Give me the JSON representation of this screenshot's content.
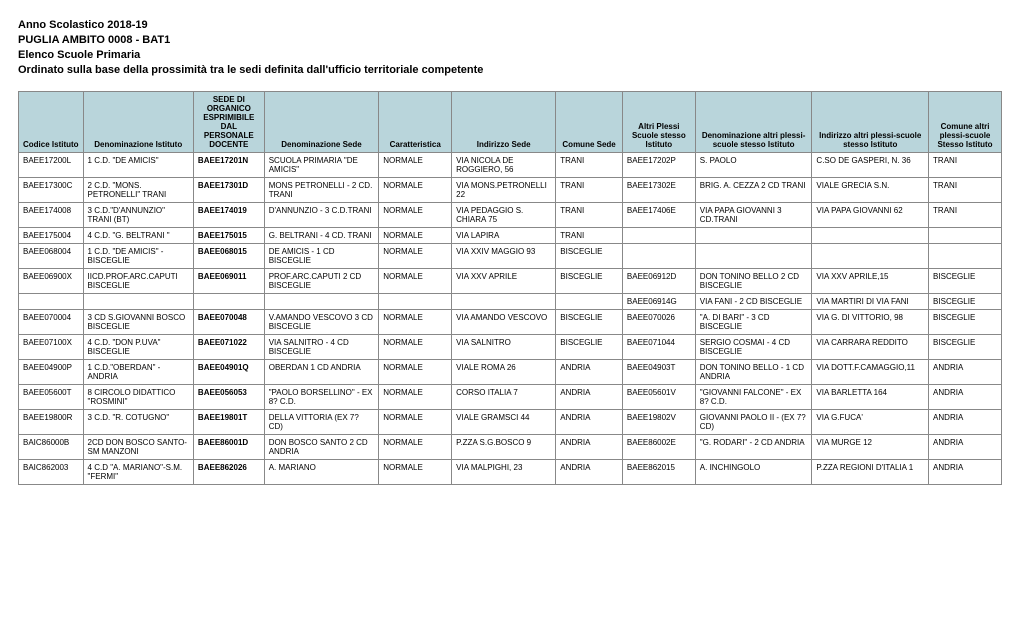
{
  "heading": {
    "line1": "Anno Scolastico 2018-19",
    "line2": "PUGLIA AMBITO 0008 - BAT1",
    "line3": "Elenco Scuole Primaria",
    "line4": "Ordinato sulla base della prossimità tra le sedi definita dall'ufficio territoriale competente"
  },
  "table": {
    "header_bg": "#b9d5db",
    "border_color": "#888888",
    "columns": [
      "Codice Istituto",
      "Denominazione Istituto",
      "SEDE DI ORGANICO ESPRIMIBILE DAL PERSONALE DOCENTE",
      "Denominazione Sede",
      "Caratteristica",
      "Indirizzo Sede",
      "Comune Sede",
      "Altri Plessi Scuole stesso Istituto",
      "Denominazione altri plessi-scuole stesso Istituto",
      "Indirizzo altri plessi-scuole stesso Istituto",
      "Comune altri plessi-scuole Stesso Istituto"
    ],
    "rows": [
      [
        "BAEE17200L",
        "1 C.D. \"DE AMICIS\"",
        "BAEE17201N",
        "SCUOLA PRIMARIA \"DE AMICIS\"",
        "NORMALE",
        "VIA NICOLA DE ROGGIERO, 56",
        "TRANI",
        "BAEE17202P",
        "S. PAOLO",
        "C.SO DE GASPERI, N. 36",
        "TRANI"
      ],
      [
        "BAEE17300C",
        "2 C.D. \"MONS. PETRONELLI\" TRANI",
        "BAEE17301D",
        "MONS PETRONELLI - 2 CD. TRANI",
        "NORMALE",
        "VIA MONS.PETRONELLI 22",
        "TRANI",
        "BAEE17302E",
        "BRIG. A. CEZZA 2 CD TRANI",
        "VIALE GRECIA S.N.",
        "TRANI"
      ],
      [
        "BAEE174008",
        "3 C.D.\"D'ANNUNZIO\" TRANI (BT)",
        "BAEE174019",
        "D'ANNUNZIO - 3 C.D.TRANI",
        "NORMALE",
        "VIA PEDAGGIO S. CHIARA  75",
        "TRANI",
        "BAEE17406E",
        "VIA PAPA GIOVANNI  3 CD.TRANI",
        "VIA PAPA GIOVANNI 62",
        "TRANI"
      ],
      [
        "BAEE175004",
        "4 C.D. \"G. BELTRANI \"",
        "BAEE175015",
        "G. BELTRANI  - 4 CD. TRANI",
        "NORMALE",
        "VIA LAPIRA",
        "TRANI",
        "",
        "",
        "",
        ""
      ],
      [
        "BAEE068004",
        "1 C.D. \"DE AMICIS\" - BISCEGLIE",
        "BAEE068015",
        "DE AMICIS - 1 CD BISCEGLIE",
        "NORMALE",
        "VIA XXIV MAGGIO 93",
        "BISCEGLIE",
        "",
        "",
        "",
        ""
      ],
      [
        "BAEE06900X",
        "IICD.PROF.ARC.CAPUTI BISCEGLIE",
        "BAEE069011",
        "PROF.ARC.CAPUTI 2 CD BISCEGLIE",
        "NORMALE",
        "VIA XXV APRILE",
        "BISCEGLIE",
        "BAEE06912D",
        "DON TONINO BELLO 2 CD BISCEGLIE",
        "VIA XXV APRILE,15",
        "BISCEGLIE"
      ],
      [
        "",
        "",
        "",
        "",
        "",
        "",
        "",
        "BAEE06914G",
        "VIA FANI - 2 CD BISCEGLIE",
        "VIA MARTIRI DI VIA FANI",
        "BISCEGLIE"
      ],
      [
        "BAEE070004",
        "3 CD S.GIOVANNI BOSCO BISCEGLIE",
        "BAEE070048",
        "V.AMANDO VESCOVO 3 CD BISCEGLIE",
        "NORMALE",
        "VIA AMANDO VESCOVO",
        "BISCEGLIE",
        "BAEE070026",
        "\"A. DI BARI\" - 3 CD BISCEGLIE",
        "VIA G. DI VITTORIO, 98",
        "BISCEGLIE"
      ],
      [
        "BAEE07100X",
        "4 C.D. \"DON P.UVA\" BISCEGLIE",
        "BAEE071022",
        "VIA SALNITRO - 4 CD BISCEGLIE",
        "NORMALE",
        "VIA SALNITRO",
        "BISCEGLIE",
        "BAEE071044",
        "SERGIO COSMAI - 4 CD BISCEGLIE",
        "VIA CARRARA REDDITO",
        "BISCEGLIE"
      ],
      [
        "BAEE04900P",
        "1 C.D.\"OBERDAN\" - ANDRIA",
        "BAEE04901Q",
        "OBERDAN  1 CD ANDRIA",
        "NORMALE",
        "VIALE ROMA 26",
        "ANDRIA",
        "BAEE04903T",
        "DON TONINO BELLO - 1 CD ANDRIA",
        "VIA DOTT.F.CAMAGGIO,11",
        "ANDRIA"
      ],
      [
        "BAEE05600T",
        "8 CIRCOLO DIDATTICO \"ROSMINI\"",
        "BAEE056053",
        "\"PAOLO BORSELLINO\" - EX 8? C.D.",
        "NORMALE",
        "CORSO ITALIA 7",
        "ANDRIA",
        "BAEE05601V",
        "\"GIOVANNI FALCONE\" - EX 8? C.D.",
        "VIA BARLETTA 164",
        "ANDRIA"
      ],
      [
        "BAEE19800R",
        "3 C.D. \"R. COTUGNO\"",
        "BAEE19801T",
        "DELLA VITTORIA  (EX 7? CD)",
        "NORMALE",
        "VIALE GRAMSCI 44",
        "ANDRIA",
        "BAEE19802V",
        "GIOVANNI PAOLO II - (EX 7? CD)",
        "VIA G.FUCA'",
        "ANDRIA"
      ],
      [
        "BAIC86000B",
        "2CD DON BOSCO SANTO-SM MANZONI",
        "BAEE86001D",
        "DON BOSCO SANTO 2 CD ANDRIA",
        "NORMALE",
        "P.ZZA S.G.BOSCO 9",
        "ANDRIA",
        "BAEE86002E",
        "\"G. RODARI\" - 2 CD ANDRIA",
        "VIA MURGE 12",
        "ANDRIA"
      ],
      [
        "BAIC862003",
        "4 C.D \"A. MARIANO\"-S.M. \"FERMI\"",
        "BAEE862026",
        "A. MARIANO",
        "NORMALE",
        "VIA MALPIGHI, 23",
        "ANDRIA",
        "BAEE862015",
        "A. INCHINGOLO",
        "P.ZZA REGIONI D'ITALIA 1",
        "ANDRIA"
      ]
    ]
  }
}
